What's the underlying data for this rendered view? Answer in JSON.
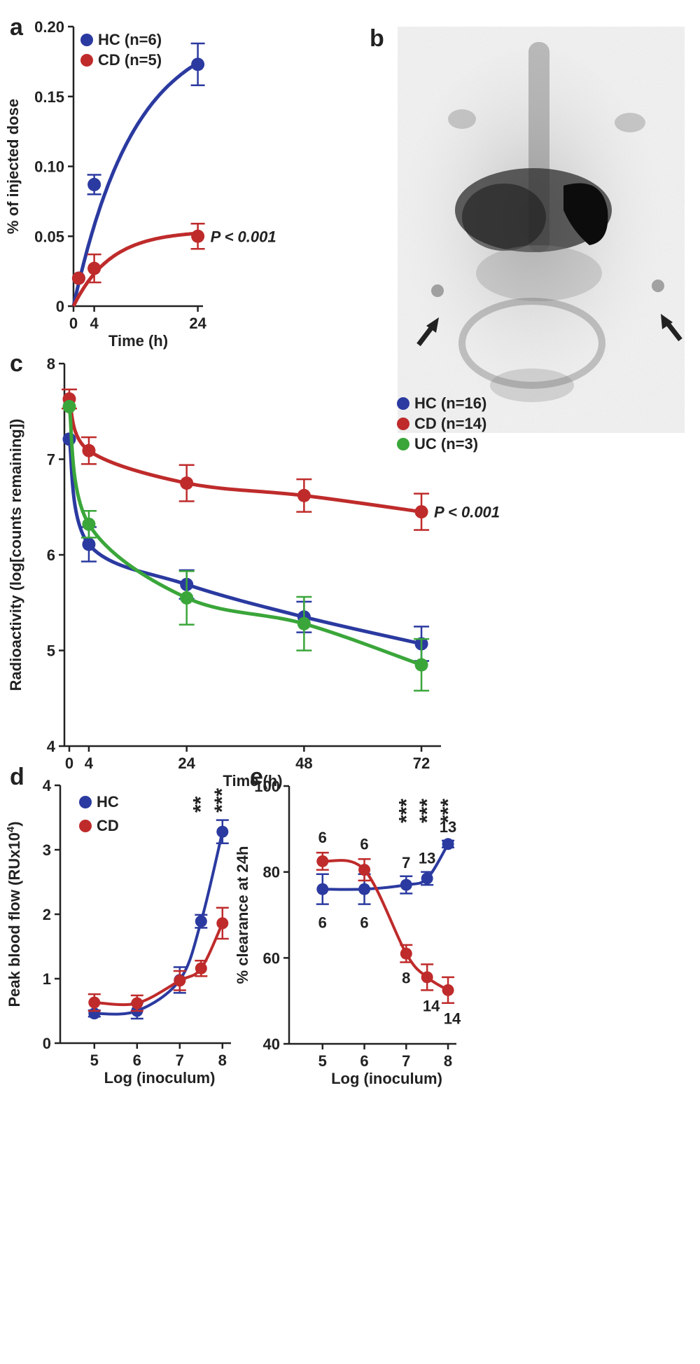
{
  "colors": {
    "HC": "#2b3aa0",
    "CD": "#bf2b2b",
    "UC": "#3aa63a",
    "axis": "#222222",
    "arrow": "#222222"
  },
  "chart_data": [
    {
      "id": "a",
      "panel": "a",
      "type": "line",
      "xlabel": "Time (h)",
      "ylabel": "% of injected dose",
      "xlim": [
        0,
        25
      ],
      "ylim": [
        0,
        0.2
      ],
      "xticks": [
        "0",
        "4",
        "24"
      ],
      "xtick_values": [
        0,
        4,
        24
      ],
      "yticks": [
        "0",
        "0.05",
        "0.10",
        "0.15",
        "0.20"
      ],
      "ytick_values": [
        0,
        0.05,
        0.1,
        0.15,
        0.2
      ],
      "legend": [
        "HC (n=6)",
        "CD (n=5)"
      ],
      "series": [
        {
          "name": "HC",
          "x": [
            1,
            4,
            24
          ],
          "y": [
            0.02,
            0.087,
            0.173
          ],
          "err": [
            0.0,
            0.007,
            0.015
          ],
          "fit": "sat",
          "fitA": 0.2,
          "fitk": 0.085
        },
        {
          "name": "CD",
          "x": [
            1,
            4,
            24
          ],
          "y": [
            0.02,
            0.027,
            0.05
          ],
          "err": [
            0.0,
            0.01,
            0.009
          ],
          "fit": "sat",
          "fitA": 0.054,
          "fitk": 0.14
        }
      ],
      "annotation": "P < 0.001"
    },
    {
      "id": "b",
      "panel": "b",
      "type": "image",
      "description_marks": [
        "arrow-left",
        "arrow-right"
      ]
    },
    {
      "id": "c",
      "panel": "c",
      "type": "line",
      "xlabel": "Time (h)",
      "ylabel": "Radioactivity (log[counts remaining])",
      "xlim": [
        -1,
        76
      ],
      "ylim": [
        4,
        8
      ],
      "xticks": [
        "0",
        "4",
        "24",
        "48",
        "72"
      ],
      "xtick_values": [
        0,
        4,
        24,
        48,
        72
      ],
      "yticks": [
        "4",
        "5",
        "6",
        "7",
        "8"
      ],
      "ytick_values": [
        4,
        5,
        6,
        7,
        8
      ],
      "legend": [
        "HC (n=16)",
        "CD (n=14)",
        "UC (n=3)"
      ],
      "series": [
        {
          "name": "HC",
          "x": [
            0,
            4,
            24,
            48,
            72
          ],
          "y": [
            7.21,
            6.11,
            5.69,
            5.35,
            5.07
          ],
          "err": [
            0.0,
            0.18,
            0.15,
            0.16,
            0.18
          ]
        },
        {
          "name": "CD",
          "x": [
            0,
            4,
            24,
            48,
            72
          ],
          "y": [
            7.63,
            7.09,
            6.75,
            6.62,
            6.45
          ],
          "err": [
            0.1,
            0.14,
            0.19,
            0.17,
            0.19
          ]
        },
        {
          "name": "UC",
          "x": [
            0,
            4,
            24,
            48,
            72
          ],
          "y": [
            7.55,
            6.32,
            5.55,
            5.28,
            4.85
          ],
          "err": [
            0.0,
            0.14,
            0.28,
            0.28,
            0.27
          ]
        }
      ],
      "annotation": "P < 0.001"
    },
    {
      "id": "d",
      "panel": "d",
      "type": "line",
      "xlabel": "Log (inoculum)",
      "ylabel": "Peak blood flow  (RUx10",
      "ylabel_sup": "4",
      "ylabel_close": ")",
      "xlim": [
        4.2,
        8.2
      ],
      "ylim": [
        0,
        4
      ],
      "xticks": [
        "5",
        "6",
        "7",
        "8"
      ],
      "xtick_values": [
        5,
        6,
        7,
        8
      ],
      "yticks": [
        "0",
        "1",
        "2",
        "3",
        "4"
      ],
      "ytick_values": [
        0,
        1,
        2,
        3,
        4
      ],
      "legend": [
        "HC",
        "CD"
      ],
      "series": [
        {
          "name": "HC",
          "x": [
            5,
            6,
            7,
            7.5,
            8
          ],
          "y": [
            0.46,
            0.5,
            0.98,
            1.89,
            3.28
          ],
          "err": [
            0.05,
            0.12,
            0.2,
            0.1,
            0.18
          ]
        },
        {
          "name": "CD",
          "x": [
            5,
            6,
            7,
            7.5,
            8
          ],
          "y": [
            0.63,
            0.62,
            0.97,
            1.16,
            1.86
          ],
          "err": [
            0.13,
            0.12,
            0.15,
            0.12,
            0.24
          ]
        }
      ],
      "significance": [
        {
          "x": 7.5,
          "label": "**"
        },
        {
          "x": 8,
          "label": "***"
        }
      ]
    },
    {
      "id": "e",
      "panel": "e",
      "type": "line",
      "xlabel": "Log (inoculum)",
      "ylabel": "% clearance at 24h",
      "xlim": [
        4.2,
        8.2
      ],
      "ylim": [
        40,
        100
      ],
      "xticks": [
        "5",
        "6",
        "7",
        "8"
      ],
      "xtick_values": [
        5,
        6,
        7,
        8
      ],
      "yticks": [
        "40",
        "60",
        "80",
        "100"
      ],
      "ytick_values": [
        40,
        60,
        80,
        100
      ],
      "series": [
        {
          "name": "HC",
          "x": [
            5,
            6,
            7,
            7.5,
            8
          ],
          "y": [
            76,
            76,
            77,
            78.5,
            86.5
          ],
          "err": [
            3.5,
            3.5,
            2,
            1.5,
            0.8
          ],
          "n": [
            "6",
            "6",
            "7",
            "13",
            "13"
          ]
        },
        {
          "name": "CD",
          "x": [
            5,
            6,
            7,
            7.5,
            8
          ],
          "y": [
            82.5,
            80.5,
            61,
            55.5,
            52.5
          ],
          "err": [
            2,
            2.5,
            2,
            3,
            3
          ],
          "n": [
            "6",
            "6",
            "8",
            "14",
            "14"
          ]
        }
      ],
      "significance": [
        {
          "x": 7,
          "label": "***"
        },
        {
          "x": 7.5,
          "label": "***"
        },
        {
          "x": 8,
          "label": "***"
        }
      ]
    }
  ]
}
